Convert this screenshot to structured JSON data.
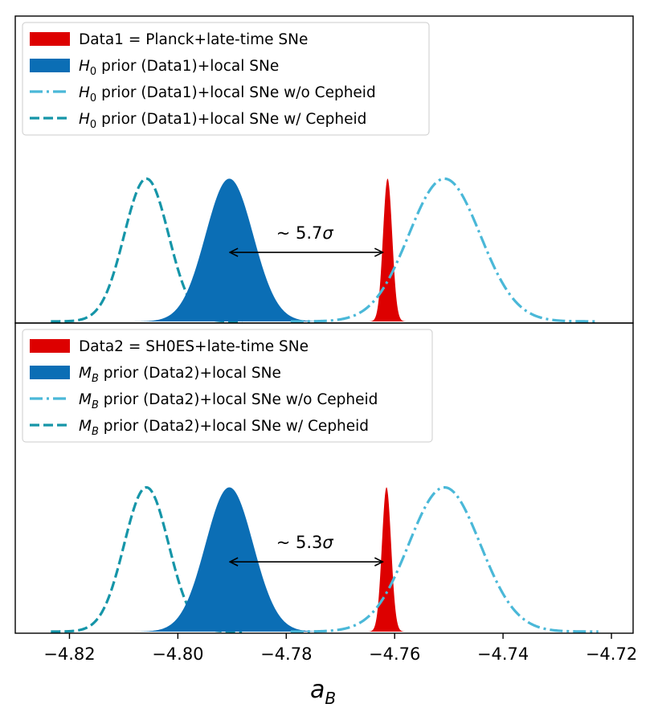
{
  "chart_data": {
    "type": "line",
    "xlabel_main": "a",
    "xlabel_sub": "B",
    "xlim": [
      -4.83,
      -4.716
    ],
    "xticks": [
      -4.82,
      -4.8,
      -4.78,
      -4.76,
      -4.74,
      -4.72
    ],
    "xtick_labels": [
      "−4.82",
      "−4.80",
      "−4.78",
      "−4.76",
      "−4.74",
      "−4.72"
    ],
    "colors": {
      "data": "#dd0000",
      "prior": "#0b6eb5",
      "wo_cepheid": "#4ab8d8",
      "w_cepheid": "#1595a8"
    },
    "panels": [
      {
        "legend_location": "upper-left",
        "legend": [
          {
            "parts": [
              {
                "t": "Data1 = Planck+late-time SNe"
              }
            ]
          },
          {
            "parts": [
              {
                "t": "H",
                "i": true
              },
              {
                "t": "0",
                "sub": true
              },
              {
                "t": " prior (Data1)+local SNe"
              }
            ]
          },
          {
            "parts": [
              {
                "t": "H",
                "i": true
              },
              {
                "t": "0",
                "sub": true
              },
              {
                "t": " prior (Data1)+local SNe w/o Cepheid"
              }
            ]
          },
          {
            "parts": [
              {
                "t": "H",
                "i": true
              },
              {
                "t": "0",
                "sub": true
              },
              {
                "t": " prior (Data1)+local SNe w/ Cepheid"
              }
            ]
          }
        ],
        "series": [
          {
            "name": "Data1 = Planck+late-time SNe",
            "kind": "filled",
            "color_key": "data",
            "mean": -4.7613,
            "sigma": 0.00085,
            "peak": 0.93
          },
          {
            "name": "H0 prior (Data1)+local SNe",
            "kind": "filled",
            "color_key": "prior",
            "mean": -4.7905,
            "sigma": 0.0044,
            "peak": 0.93
          },
          {
            "name": "H0 prior (Data1)+local SNe w/o Cepheid",
            "kind": "dashdot",
            "color_key": "wo_cepheid",
            "mean": -4.7508,
            "sigma": 0.0066,
            "peak": 0.93
          },
          {
            "name": "H0 prior (Data1)+local SNe w/ Cepheid",
            "kind": "dashed",
            "color_key": "w_cepheid",
            "mean": -4.8058,
            "sigma": 0.0041,
            "peak": 0.93
          }
        ],
        "annotation": {
          "prefix": "~ 5.7",
          "symbol": "σ",
          "from_x": -4.7904,
          "to_x": -4.7622,
          "y": 0.45
        }
      },
      {
        "legend_location": "upper-left",
        "legend": [
          {
            "parts": [
              {
                "t": "Data2 = SH0ES+late-time SNe"
              }
            ]
          },
          {
            "parts": [
              {
                "t": "M",
                "i": true
              },
              {
                "t": "B",
                "sub": true,
                "i": true
              },
              {
                "t": " prior (Data2)+local SNe"
              }
            ]
          },
          {
            "parts": [
              {
                "t": "M",
                "i": true
              },
              {
                "t": "B",
                "sub": true,
                "i": true
              },
              {
                "t": " prior (Data2)+local SNe w/o Cepheid"
              }
            ]
          },
          {
            "parts": [
              {
                "t": "M",
                "i": true
              },
              {
                "t": "B",
                "sub": true,
                "i": true
              },
              {
                "t": " prior (Data2)+local SNe w/ Cepheid"
              }
            ]
          }
        ],
        "series": [
          {
            "name": "Data2 = SH0ES+late-time SNe",
            "kind": "filled",
            "color_key": "data",
            "mean": -4.7615,
            "sigma": 0.00085,
            "peak": 0.93
          },
          {
            "name": "MB prior (Data2)+local SNe",
            "kind": "filled",
            "color_key": "prior",
            "mean": -4.7905,
            "sigma": 0.0044,
            "peak": 0.93
          },
          {
            "name": "MB prior (Data2)+local SNe w/o Cepheid",
            "kind": "dashdot",
            "color_key": "wo_cepheid",
            "mean": -4.7508,
            "sigma": 0.0066,
            "peak": 0.93
          },
          {
            "name": "MB prior (Data2)+local SNe w/ Cepheid",
            "kind": "dashed",
            "color_key": "w_cepheid",
            "mean": -4.8058,
            "sigma": 0.0041,
            "peak": 0.93
          }
        ],
        "annotation": {
          "prefix": "~ 5.3",
          "symbol": "σ",
          "from_x": -4.7904,
          "to_x": -4.7622,
          "y": 0.45
        }
      }
    ]
  }
}
